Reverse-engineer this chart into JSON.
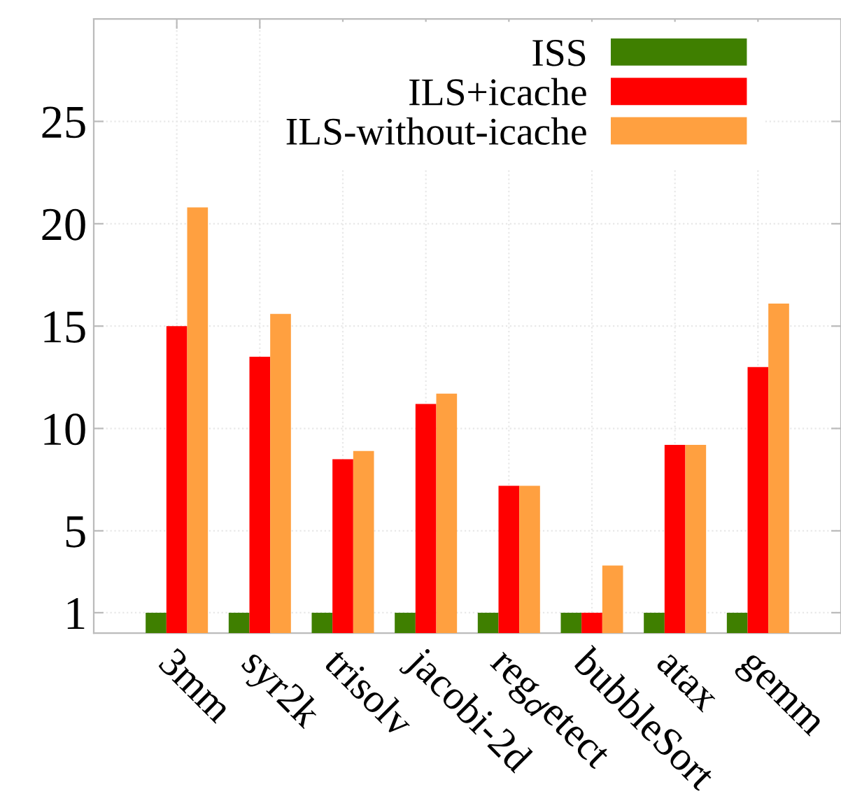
{
  "chart_data": {
    "type": "bar",
    "categories": [
      "3mm",
      "syr2k",
      "trisolv",
      "jacobi-2d",
      "reg$_{d}$etect",
      "bubbleSort",
      "atax",
      "gemm"
    ],
    "series": [
      {
        "name": "ISS",
        "color": "#3f7f00",
        "values": [
          1,
          1,
          1,
          1,
          1,
          1,
          1,
          1
        ]
      },
      {
        "name": "ILS+icache",
        "color": "#ff0000",
        "values": [
          15,
          13.5,
          8.5,
          11.2,
          7.2,
          1,
          9.2,
          13
        ]
      },
      {
        "name": "ILS-without-icache",
        "color": "#ffa040",
        "values": [
          20.8,
          15.6,
          8.9,
          11.7,
          7.2,
          3.3,
          9.2,
          16.1
        ]
      }
    ],
    "ylim": [
      0,
      30
    ],
    "yticks": [
      1,
      5,
      10,
      15,
      20,
      25
    ],
    "grid": true,
    "legend": "top right"
  }
}
